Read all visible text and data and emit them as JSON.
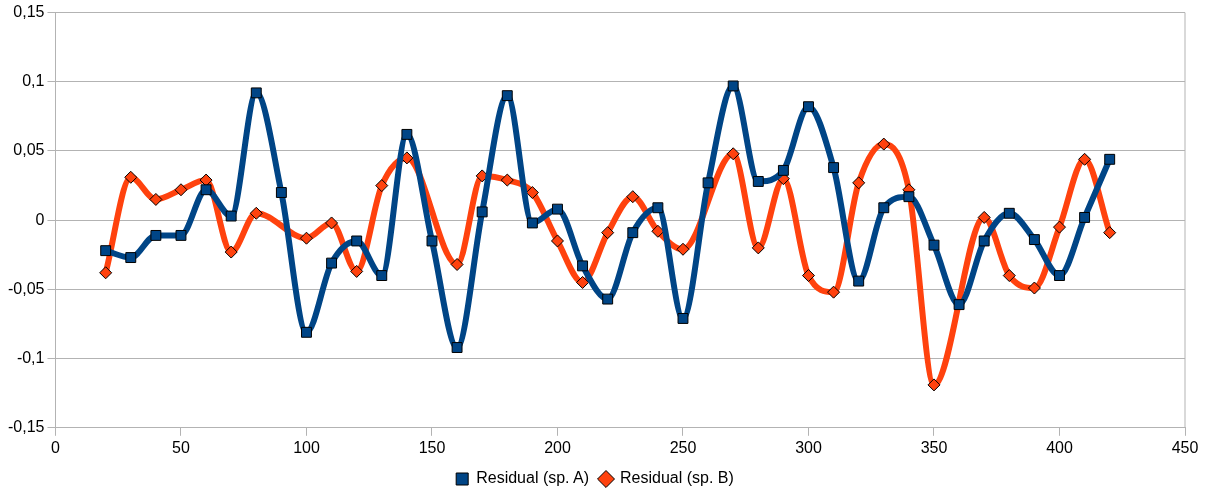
{
  "chart_data": {
    "type": "line",
    "x": [
      20,
      30,
      40,
      50,
      60,
      70,
      80,
      90,
      100,
      110,
      120,
      130,
      140,
      150,
      160,
      170,
      180,
      190,
      200,
      210,
      220,
      230,
      240,
      250,
      260,
      270,
      280,
      290,
      300,
      310,
      320,
      330,
      340,
      350,
      360,
      370,
      380,
      390,
      400,
      410,
      420
    ],
    "series": [
      {
        "name": "Residual (sp. A)",
        "color": "#004586",
        "marker": "square",
        "values": [
          -0.022,
          -0.027,
          -0.011,
          -0.011,
          0.022,
          0.003,
          0.092,
          0.02,
          -0.081,
          -0.031,
          -0.015,
          -0.04,
          0.062,
          -0.015,
          -0.092,
          0.006,
          0.09,
          -0.002,
          0.008,
          -0.033,
          -0.057,
          -0.009,
          0.009,
          -0.071,
          0.027,
          0.097,
          0.028,
          0.036,
          0.082,
          0.038,
          -0.044,
          0.009,
          0.017,
          -0.018,
          -0.061,
          -0.015,
          0.005,
          -0.014,
          -0.04,
          0.002,
          0.044
        ]
      },
      {
        "name": "Residual (sp. B)",
        "color": "#ff420e",
        "marker": "diamond",
        "values": [
          -0.038,
          0.031,
          0.015,
          0.022,
          0.029,
          -0.023,
          0.005,
          null,
          -0.013,
          -0.002,
          -0.037,
          0.025,
          0.045,
          null,
          -0.032,
          0.032,
          0.029,
          0.02,
          -0.015,
          -0.045,
          -0.009,
          0.017,
          -0.008,
          -0.021,
          null,
          0.048,
          -0.02,
          0.03,
          -0.04,
          -0.052,
          0.027,
          0.055,
          0.022,
          -0.119,
          null,
          0.002,
          -0.04,
          -0.049,
          -0.005,
          0.044,
          -0.009
        ]
      }
    ],
    "xlim": [
      0,
      450
    ],
    "xticks": [
      0,
      50,
      100,
      150,
      200,
      250,
      300,
      350,
      400,
      450
    ],
    "ylim": [
      -0.15,
      0.15
    ],
    "yticks": [
      {
        "value": -0.15,
        "label": "-0,15"
      },
      {
        "value": -0.1,
        "label": "-0,1"
      },
      {
        "value": -0.05,
        "label": "-0,05"
      },
      {
        "value": 0,
        "label": "0"
      },
      {
        "value": 0.05,
        "label": "0,05"
      },
      {
        "value": 0.1,
        "label": "0,1"
      },
      {
        "value": 0.15,
        "label": "0,15"
      }
    ],
    "grid": "y",
    "legend": "bottom"
  }
}
